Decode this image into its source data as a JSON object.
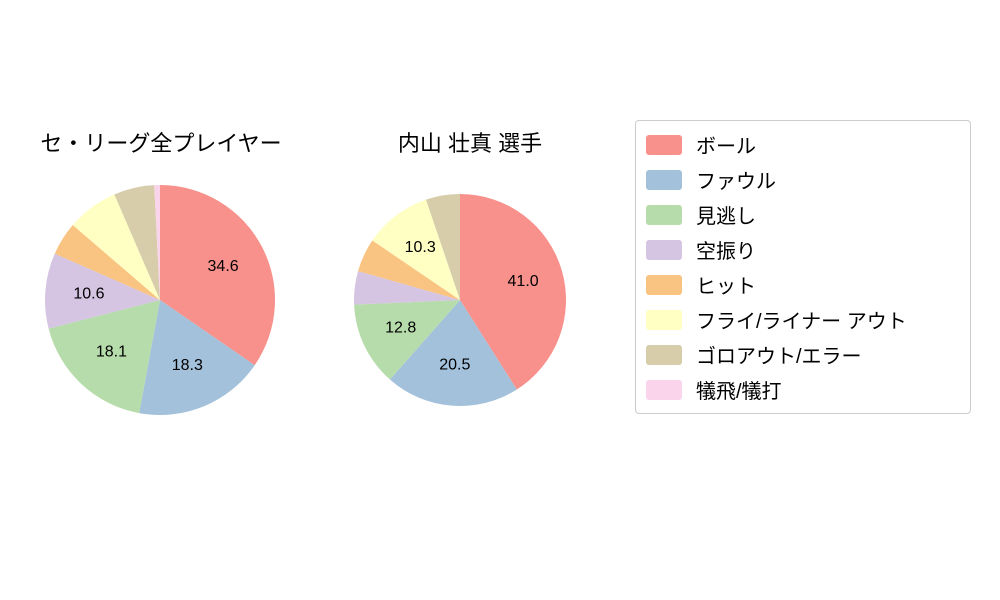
{
  "chart_data": [
    {
      "type": "pie",
      "title": "セ・リーグ全プレイヤー",
      "center": [
        160,
        300
      ],
      "radius": 115,
      "start_angle": "top",
      "direction": "clockwise",
      "slices": [
        {
          "name": "ボール",
          "value": 34.6,
          "label": "34.6"
        },
        {
          "name": "ファウル",
          "value": 18.3,
          "label": "18.3"
        },
        {
          "name": "見逃し",
          "value": 18.1,
          "label": "18.1"
        },
        {
          "name": "空振り",
          "value": 10.6,
          "label": "10.6"
        },
        {
          "name": "ヒット",
          "value": 4.7,
          "label": null
        },
        {
          "name": "フライ/ライナー アウト",
          "value": 7.2,
          "label": null
        },
        {
          "name": "ゴロアウト/エラー",
          "value": 5.7,
          "label": null
        },
        {
          "name": "犠飛/犠打",
          "value": 0.8,
          "label": null
        }
      ]
    },
    {
      "type": "pie",
      "title": "内山 壮真  選手",
      "center": [
        460,
        300
      ],
      "radius": 106,
      "start_angle": "top",
      "direction": "clockwise",
      "slices": [
        {
          "name": "ボール",
          "value": 41.0,
          "label": "41.0"
        },
        {
          "name": "ファウル",
          "value": 20.5,
          "label": "20.5"
        },
        {
          "name": "見逃し",
          "value": 12.8,
          "label": "12.8"
        },
        {
          "name": "空振り",
          "value": 5.1,
          "label": null
        },
        {
          "name": "ヒット",
          "value": 5.1,
          "label": null
        },
        {
          "name": "フライ/ライナー アウト",
          "value": 10.3,
          "label": "10.3"
        },
        {
          "name": "ゴロアウト/エラー",
          "value": 5.2,
          "label": null
        },
        {
          "name": "犠飛/犠打",
          "value": 0.0,
          "label": null
        }
      ]
    }
  ],
  "legend": {
    "position": "right",
    "items": [
      {
        "label": "ボール",
        "color": "#f8918c"
      },
      {
        "label": "ファウル",
        "color": "#a3c1da"
      },
      {
        "label": "見逃し",
        "color": "#b7dcab"
      },
      {
        "label": "空振り",
        "color": "#d5c4e2"
      },
      {
        "label": "ヒット",
        "color": "#f9c482"
      },
      {
        "label": "フライ/ライナー アウト",
        "color": "#ffffc4"
      },
      {
        "label": "ゴロアウト/エラー",
        "color": "#d7cdaa"
      },
      {
        "label": "犠飛/犠打",
        "color": "#fad4ea"
      }
    ]
  }
}
